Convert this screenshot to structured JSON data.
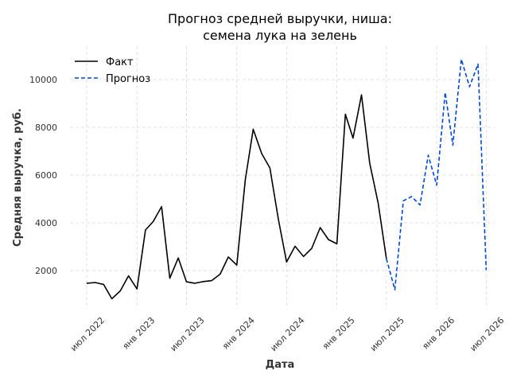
{
  "chart_data": {
    "type": "line",
    "title_lines": [
      "Прогноз средней выручки, ниша:",
      "семена лука на зелень"
    ],
    "xlabel": "Дата",
    "ylabel": "Средняя выручка, руб.",
    "ylim": [
      400,
      11400
    ],
    "xlim": [
      "2022-05-01",
      "2026-08-01"
    ],
    "yticks": [
      2000,
      4000,
      6000,
      8000,
      10000
    ],
    "xticks": [
      {
        "date": "2022-07-01",
        "label": "июл 2022"
      },
      {
        "date": "2023-01-01",
        "label": "янв 2023"
      },
      {
        "date": "2023-07-01",
        "label": "июл 2023"
      },
      {
        "date": "2024-01-01",
        "label": "янв 2024"
      },
      {
        "date": "2024-07-01",
        "label": "июл 2024"
      },
      {
        "date": "2025-01-01",
        "label": "янв 2025"
      },
      {
        "date": "2025-07-01",
        "label": "июл 2025"
      },
      {
        "date": "2026-01-01",
        "label": "янв 2026"
      },
      {
        "date": "2026-07-01",
        "label": "июл 2026"
      }
    ],
    "grid": true,
    "legend_position": "top-left",
    "series": [
      {
        "name": "Факт",
        "color": "#000000",
        "style": "solid",
        "points": [
          [
            "2022-07-01",
            1470
          ],
          [
            "2022-08-01",
            1500
          ],
          [
            "2022-09-01",
            1420
          ],
          [
            "2022-10-01",
            820
          ],
          [
            "2022-11-01",
            1150
          ],
          [
            "2022-12-01",
            1780
          ],
          [
            "2023-01-01",
            1230
          ],
          [
            "2023-02-01",
            3700
          ],
          [
            "2023-03-01",
            4050
          ],
          [
            "2023-04-01",
            4680
          ],
          [
            "2023-05-01",
            1680
          ],
          [
            "2023-06-01",
            2530
          ],
          [
            "2023-07-01",
            1530
          ],
          [
            "2023-08-01",
            1470
          ],
          [
            "2023-09-01",
            1540
          ],
          [
            "2023-10-01",
            1580
          ],
          [
            "2023-11-01",
            1850
          ],
          [
            "2023-12-01",
            2570
          ],
          [
            "2024-01-01",
            2230
          ],
          [
            "2024-02-01",
            5800
          ],
          [
            "2024-03-01",
            7920
          ],
          [
            "2024-04-01",
            6900
          ],
          [
            "2024-05-01",
            6300
          ],
          [
            "2024-06-01",
            4150
          ],
          [
            "2024-07-01",
            2360
          ],
          [
            "2024-08-01",
            3020
          ],
          [
            "2024-09-01",
            2590
          ],
          [
            "2024-10-01",
            2930
          ],
          [
            "2024-11-01",
            3800
          ],
          [
            "2024-12-01",
            3300
          ],
          [
            "2025-01-01",
            3120
          ],
          [
            "2025-02-01",
            8550
          ],
          [
            "2025-03-01",
            7550
          ],
          [
            "2025-04-01",
            9360
          ],
          [
            "2025-05-01",
            6500
          ],
          [
            "2025-06-01",
            4820
          ],
          [
            "2025-07-01",
            2500
          ]
        ]
      },
      {
        "name": "Прогноз",
        "color": "#0047d6",
        "style": "dashed",
        "points": [
          [
            "2025-07-01",
            2500
          ],
          [
            "2025-08-01",
            1200
          ],
          [
            "2025-09-01",
            4920
          ],
          [
            "2025-10-01",
            5100
          ],
          [
            "2025-11-01",
            4750
          ],
          [
            "2025-12-01",
            6830
          ],
          [
            "2026-01-01",
            5580
          ],
          [
            "2026-02-01",
            9460
          ],
          [
            "2026-03-01",
            7250
          ],
          [
            "2026-04-01",
            10850
          ],
          [
            "2026-05-01",
            9700
          ],
          [
            "2026-06-01",
            10650
          ],
          [
            "2026-07-01",
            2020
          ]
        ]
      }
    ]
  }
}
